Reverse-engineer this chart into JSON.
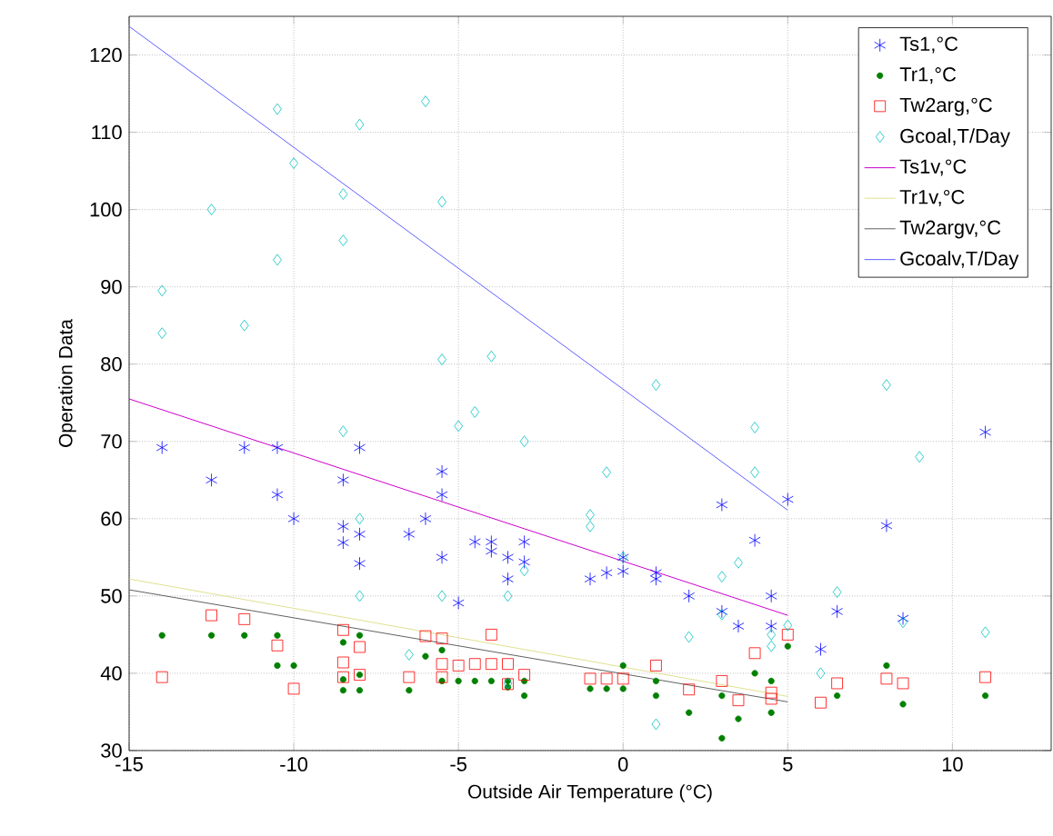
{
  "chart_data": {
    "type": "scatter",
    "xlabel": "Outside Air Temperature (°C)",
    "ylabel": "Operation Data",
    "xlim": [
      -15,
      13
    ],
    "ylim": [
      30,
      125
    ],
    "xticks": [
      -15,
      -10,
      -5,
      0,
      5,
      10
    ],
    "yticks": [
      30,
      40,
      50,
      60,
      70,
      80,
      90,
      100,
      110,
      120
    ],
    "grid": true,
    "legend": "top right",
    "series": [
      {
        "name": "Ts1,°C",
        "color": "#0000ff",
        "marker": "cross",
        "x": [
          -14,
          -12.5,
          -11.5,
          -10.5,
          -10.5,
          -10,
          -8.5,
          -8.5,
          -8.5,
          -8,
          -8,
          -8,
          -6.5,
          -6,
          -5.5,
          -5.5,
          -5.5,
          -5,
          -4.5,
          -4,
          -4,
          -3.5,
          -3.5,
          -3,
          -3,
          -1,
          -0.5,
          0,
          0,
          1,
          1,
          2,
          3,
          3,
          3.5,
          4,
          4.5,
          4.5,
          5,
          6,
          6.5,
          8,
          8.5,
          11
        ],
        "values": [
          69.2,
          65,
          69.2,
          69.2,
          63.1,
          60,
          65,
          59,
          56.9,
          69.2,
          58,
          54.2,
          58,
          60,
          66.1,
          63.1,
          55,
          49.1,
          57,
          57,
          55.8,
          55,
          52.2,
          57,
          54.4,
          52.2,
          53,
          55,
          53.2,
          53,
          52.2,
          50,
          61.8,
          48,
          46.1,
          57.2,
          50,
          46.1,
          62.5,
          43.1,
          48,
          59.1,
          47.1,
          71.2
        ]
      },
      {
        "name": "Tr1,°C",
        "color": "#008000",
        "marker": "circle",
        "x": [
          -14,
          -12.5,
          -11.5,
          -10.5,
          -10.5,
          -10,
          -8.5,
          -8.5,
          -8.5,
          -8,
          -8,
          -8,
          -6.5,
          -6,
          -5.5,
          -5.5,
          -5,
          -4.5,
          -4,
          -3.5,
          -3.5,
          -3,
          -3,
          -1,
          -0.5,
          0,
          0,
          1,
          1,
          2,
          3,
          3,
          3.5,
          4,
          4.5,
          4.5,
          5,
          6.5,
          8,
          8.5,
          11
        ],
        "values": [
          44.9,
          44.9,
          44.9,
          44.9,
          41,
          41,
          44,
          39.2,
          37.8,
          44.9,
          39.8,
          37.8,
          37.8,
          42.2,
          43,
          39,
          39,
          39,
          39,
          39,
          38.2,
          39,
          37.1,
          38,
          38,
          41,
          38,
          39,
          37.1,
          34.9,
          37.1,
          31.6,
          34.1,
          40,
          39,
          34.9,
          43.5,
          37.1,
          41,
          36,
          37.1
        ]
      },
      {
        "name": "Tw2arg,°C",
        "color": "#ff0000",
        "marker": "square",
        "x": [
          -14,
          -12.5,
          -11.5,
          -10.5,
          -10,
          -8.5,
          -8.5,
          -8.5,
          -8,
          -8,
          -6.5,
          -6,
          -5.5,
          -5.5,
          -5.5,
          -5,
          -4.5,
          -4,
          -4,
          -3.5,
          -3.5,
          -3,
          -1,
          -0.5,
          0,
          1,
          2,
          3,
          3.5,
          4,
          4.5,
          4.5,
          5,
          6,
          6.5,
          8,
          8.5,
          11
        ],
        "values": [
          39.5,
          47.5,
          47,
          43.6,
          38,
          45.6,
          41.4,
          39.5,
          43.4,
          39.8,
          39.5,
          44.8,
          44.5,
          41.2,
          39.5,
          41,
          41.2,
          45,
          41.2,
          41.2,
          38.6,
          39.8,
          39.3,
          39.3,
          39.3,
          41,
          37.9,
          39,
          36.5,
          42.6,
          37.5,
          36.7,
          45,
          36.2,
          38.7,
          39.3,
          38.7,
          39.5
        ]
      },
      {
        "name": "Gcoal,T/Day",
        "color": "#00c0c0",
        "marker": "diamond",
        "x": [
          -14,
          -14,
          -12.5,
          -11.5,
          -10.5,
          -10.5,
          -10,
          -8.5,
          -8.5,
          -8,
          -6,
          -5.5,
          -5.5,
          -4,
          -4.5,
          -8.5,
          -5,
          -3,
          -8,
          -8,
          -5.5,
          -3.5,
          -3,
          -6.5,
          -3.5,
          4,
          4,
          -0.5,
          -1,
          -1,
          0,
          3,
          3.5,
          3,
          2,
          4.5,
          4.5,
          5,
          6.5,
          6,
          1,
          8.5,
          9,
          11,
          1,
          8
        ],
        "values": [
          89.5,
          84,
          100,
          85,
          113,
          93.5,
          106,
          102,
          96,
          111,
          114,
          101,
          80.6,
          81,
          73.8,
          71.3,
          72,
          70,
          60,
          50,
          50,
          50,
          53.3,
          42.4,
          38.7,
          71.8,
          66,
          66,
          60.5,
          59,
          55,
          52.5,
          54.3,
          47.6,
          44.7,
          45,
          43.5,
          46.2,
          50.5,
          40,
          33.4,
          46.6,
          68,
          45.3,
          77.3,
          77.3
        ]
      },
      {
        "name": "Ts1v,°C",
        "type": "line",
        "color": "#cc00cc",
        "marker": "none",
        "line_style": "solid",
        "x": [
          -15,
          5
        ],
        "values": [
          75.5,
          47.5
        ]
      },
      {
        "name": "Tr1v,°C",
        "type": "line",
        "color": "#e0e090",
        "marker": "none",
        "line_style": "solid",
        "x": [
          -15,
          5
        ],
        "values": [
          52.2,
          37
        ]
      },
      {
        "name": "Tw2argv,°C",
        "type": "line",
        "color": "#606060",
        "marker": "none",
        "line_style": "solid",
        "x": [
          -15,
          5
        ],
        "values": [
          50.8,
          36.3
        ]
      },
      {
        "name": "Gcoalv,T/Day",
        "type": "line",
        "color": "#6060ff",
        "marker": "none",
        "line_style": "solid",
        "x": [
          -15,
          5
        ],
        "values": [
          123.7,
          61.1
        ]
      }
    ]
  }
}
